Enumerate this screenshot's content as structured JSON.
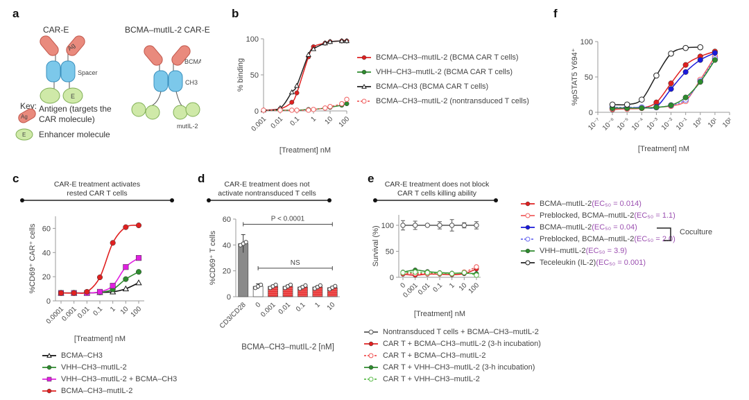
{
  "panels": {
    "a": {
      "label": "a",
      "car_e_title": "CAR-E",
      "bcma_title": "BCMA–mutIL-2 CAR-E",
      "ag_text": "Ag",
      "spacer_text": "Spacer",
      "e_text": "E",
      "bcma_text": "BCMA",
      "ch3_text": "CH3",
      "mutil2_text": "mutIL-2",
      "key_title": "Key:",
      "key_items": [
        {
          "icon": "antigen-icon",
          "glyph": "Ag",
          "text_line1": "Antigen (targets the",
          "text_line2": "CAR molecule)"
        },
        {
          "icon": "enhancer-icon",
          "glyph": "E",
          "text_line1": "Enhancer molecule"
        }
      ],
      "colors": {
        "antigen": "#e98a7d",
        "spacer": "#7cc8ea",
        "enhancer": "#cfe9a8"
      }
    },
    "b": {
      "label": "b"
    },
    "c": {
      "label": "c",
      "banner": [
        "CAR-E treatment activates",
        "rested CAR T cells"
      ]
    },
    "d": {
      "label": "d",
      "banner": [
        "CAR-E treatment does not",
        "activate nontransduced T cells"
      ]
    },
    "e": {
      "label": "e",
      "banner": [
        "CAR-E treatment does not block",
        "CAR T cells killing ability"
      ]
    },
    "f": {
      "label": "f",
      "coculture_label": "Coculture"
    }
  },
  "chart_data": [
    {
      "id": "b",
      "type": "line",
      "xscale": "log",
      "x": [
        0.001,
        0.01,
        0.05,
        0.1,
        0.5,
        1,
        5,
        10,
        50,
        100
      ],
      "xticks": [
        "0.001",
        "0.01",
        "0.1",
        "1",
        "10",
        "100"
      ],
      "xtick_values": [
        0.001,
        0.01,
        0.1,
        1,
        10,
        100
      ],
      "ylabel": "% binding",
      "xlabel": "[Treatment] nM",
      "ylim": [
        0,
        100
      ],
      "yticks": [
        0,
        50,
        100
      ],
      "series": [
        {
          "name": "BCMA–CH3–mutIL-2 (BCMA CAR T cells)",
          "color": "#e02020",
          "marker": "circle-filled",
          "dash": false,
          "values": [
            1,
            3,
            12,
            25,
            75,
            89,
            94,
            96,
            97,
            97
          ]
        },
        {
          "name": "VHH–CH3–mutIL-2 (BCMA CAR T cells)",
          "color": "#2e8b2e",
          "marker": "circle-filled",
          "dash": false,
          "values": [
            1,
            1,
            1,
            1,
            2,
            2,
            4,
            5,
            8,
            10
          ]
        },
        {
          "name": "BCMA–CH3 (BCMA CAR T cells)",
          "color": "#222222",
          "marker": "triangle-open",
          "dash": false,
          "values": [
            1,
            4,
            26,
            35,
            78,
            86,
            94,
            96,
            97,
            97
          ]
        },
        {
          "name": "BCMA–CH3–mutIL-2 (nontransduced T cells)",
          "color": "#f06060",
          "marker": "circle-open",
          "dash": true,
          "values": [
            1,
            1,
            1,
            1,
            1,
            2,
            4,
            6,
            10,
            16
          ]
        }
      ]
    },
    {
      "id": "c",
      "type": "line",
      "xscale": "log",
      "x": [
        0.0001,
        0.001,
        0.01,
        0.1,
        1,
        10,
        100
      ],
      "xticks": [
        "0.0001",
        "0.001",
        "0.01",
        "0.1",
        "1",
        "10",
        "100"
      ],
      "ylabel": "%CD69⁺ CAR⁺ cells",
      "xlabel": "[Treatment] nM",
      "ylim": [
        0,
        70
      ],
      "yticks": [
        0,
        20,
        40,
        60
      ],
      "series": [
        {
          "name": "BCMA–CH3",
          "color": "#111111",
          "marker": "triangle-open",
          "values": [
            6.5,
            6.5,
            6.5,
            7,
            7.5,
            10,
            15
          ]
        },
        {
          "name": "VHH–CH3–mutIL-2",
          "color": "#2e8b2e",
          "marker": "circle-filled",
          "values": [
            6.5,
            6.5,
            6.5,
            7,
            9.5,
            18,
            24
          ]
        },
        {
          "name": "VHH–CH3–mutIL-2 + BCMA–CH3",
          "color": "#e020e0",
          "marker": "square-filled",
          "values": [
            6.5,
            6.5,
            6.5,
            7.5,
            12.5,
            28,
            35.5
          ]
        },
        {
          "name": "BCMA–CH3–mutIL-2",
          "color": "#e02020",
          "marker": "circle-filled",
          "values": [
            6.5,
            6.5,
            7.5,
            19.5,
            48,
            61,
            62.5
          ]
        }
      ]
    },
    {
      "id": "d",
      "type": "bar",
      "categories": [
        "CD3/CD28",
        "0",
        "0.001",
        "0.01",
        "0.1",
        "1",
        "10"
      ],
      "values": [
        41,
        8,
        8,
        8,
        7.5,
        7.5,
        7
      ],
      "errors": [
        7,
        2,
        1,
        1,
        1,
        1,
        1
      ],
      "bar_colors": [
        "#8a8a8a",
        "#ffffff",
        "#e83030",
        "#e83030",
        "#e83030",
        "#e83030",
        "#e83030"
      ],
      "ylabel": "%CD69⁺ T cells",
      "xlabel": "BCMA–CH3–mutIL-2 [nM]",
      "ylim": [
        0,
        60
      ],
      "yticks": [
        0,
        20,
        40,
        60
      ],
      "annotations": [
        {
          "text": "P < 0.0001",
          "from": "CD3/CD28",
          "to": "10",
          "y": 56
        },
        {
          "text": "NS",
          "from": "0",
          "to": "10",
          "y": 22
        }
      ]
    },
    {
      "id": "e",
      "type": "line",
      "categories": [
        "0",
        "0.001",
        "0.01",
        "0.1",
        "1",
        "10",
        "100"
      ],
      "ylabel": "Survival (%)",
      "xlabel": "[Treatment] nM",
      "ylim": [
        0,
        120
      ],
      "yticks": [
        0,
        50,
        100
      ],
      "series": [
        {
          "name": "Nontransduced T cells + BCMA–CH3–mutIL-2",
          "color": "#555555",
          "marker": "circle-open",
          "dash": false,
          "values": [
            100,
            100,
            100,
            100,
            100,
            100,
            100
          ],
          "errors": [
            9,
            8,
            2,
            7,
            11,
            5,
            7
          ]
        },
        {
          "name": "CAR T + BCMA–CH3–mutIL-2 (3-h incubation)",
          "color": "#e02020",
          "marker": "circle-filled",
          "dash": false,
          "values": [
            6,
            4,
            6,
            6,
            5,
            7,
            16
          ]
        },
        {
          "name": "CAR T + BCMA–CH3–mutIL-2",
          "color": "#f05050",
          "marker": "circle-open",
          "dash": true,
          "values": [
            8,
            7,
            7,
            7,
            7,
            10,
            20
          ]
        },
        {
          "name": "CAR T + VHH–CH3–mutIL-2 (3-h incubation)",
          "color": "#2e8b2e",
          "marker": "circle-filled",
          "dash": false,
          "values": [
            10,
            14,
            11,
            9,
            8,
            8,
            7
          ]
        },
        {
          "name": "CAR T + VHH–CH3–mutIL-2",
          "color": "#5cbc4c",
          "marker": "circle-open",
          "dash": true,
          "values": [
            9,
            10,
            9,
            8,
            7,
            9,
            4
          ]
        }
      ]
    },
    {
      "id": "f",
      "type": "line",
      "xscale": "log",
      "x": [
        1e-06,
        1e-05,
        0.0001,
        0.001,
        0.01,
        0.1,
        1,
        10
      ],
      "xticks": [
        "10⁻⁷",
        "10⁻⁶",
        "10⁻⁵",
        "10⁻⁴",
        "10⁻³",
        "10⁻²",
        "10⁻¹",
        "10⁰",
        "10¹",
        "10²"
      ],
      "xtick_exponents": [
        -7,
        -6,
        -5,
        -4,
        -3,
        -2,
        -1,
        0,
        1,
        2
      ],
      "ylabel": "%pSTAT5 Y694⁺",
      "xlabel": "[Treatment] nM",
      "ylim": [
        0,
        100
      ],
      "yticks": [
        0,
        50,
        100
      ],
      "series": [
        {
          "name": "BCMA–mutIL-2",
          "ec50": "(EC₅₀ = 0.014)",
          "color": "#e02020",
          "marker": "circle-filled",
          "dash": false,
          "values": [
            4,
            5,
            6,
            14,
            41,
            67,
            79,
            86
          ]
        },
        {
          "name": "Preblocked, BCMA–mutIL-2",
          "ec50": "(EC₅₀ = 1.1)",
          "color": "#f06060",
          "marker": "circle-open",
          "dash": false,
          "values": [
            5,
            5,
            6,
            7,
            9,
            16,
            46,
            79
          ]
        },
        {
          "name": "BCMA–mutIL-2",
          "ec50": "(EC₅₀ = 0.04)",
          "color": "#1a1adc",
          "marker": "circle-filled",
          "dash": false,
          "values": [
            6,
            6,
            7,
            8,
            33,
            57,
            74,
            84
          ]
        },
        {
          "name": "Preblocked, BCMA–mutIL-2",
          "ec50": "(EC₅₀ = 2.0)",
          "color": "#6a6af0",
          "marker": "circle-open",
          "dash": true,
          "values": [
            7,
            7,
            7,
            7,
            10,
            18,
            44,
            76
          ]
        },
        {
          "name": "VHH–mutIL-2",
          "ec50": "(EC₅₀ = 3.9)",
          "color": "#2e8b2e",
          "marker": "circle-filled",
          "dash": false,
          "values": [
            6,
            6,
            6,
            7,
            10,
            21,
            43,
            74
          ]
        },
        {
          "name": "Teceleukin (IL-2)",
          "ec50": "(EC₅₀ = 0.001)",
          "color": "#222222",
          "marker": "circle-open",
          "dash": false,
          "values": [
            11,
            11,
            18,
            52,
            83,
            91,
            92,
            null
          ]
        }
      ],
      "coculture_series_indices": [
        2,
        3
      ]
    }
  ]
}
